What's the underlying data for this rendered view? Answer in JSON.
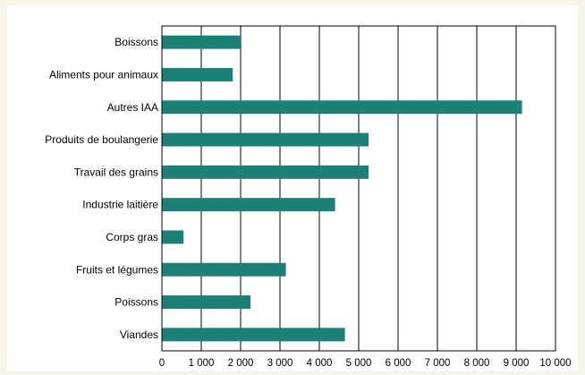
{
  "chart_data": {
    "type": "bar",
    "orientation": "horizontal",
    "categories": [
      "Boissons",
      "Aliments pour animaux",
      "Autres IAA",
      "Produits de boulangerie",
      "Travail des grains",
      "Industrie laitière",
      "Corps gras",
      "Fruits et légumes",
      "Poissons",
      "Viandes"
    ],
    "values": [
      2000,
      1800,
      9150,
      5250,
      5250,
      4400,
      550,
      3150,
      2250,
      4650
    ],
    "xlim": [
      0,
      10000
    ],
    "x_ticks": [
      0,
      1000,
      2000,
      3000,
      4000,
      5000,
      6000,
      7000,
      8000,
      9000,
      10000
    ],
    "x_tick_labels": [
      "0",
      "1 000",
      "2 000",
      "3 000",
      "4 000",
      "5 000",
      "6 000",
      "7 000",
      "8 000",
      "9 000",
      "10 000"
    ],
    "title": "",
    "xlabel": "",
    "ylabel": "",
    "grid": "vertical",
    "bar_color": "#1d8077"
  }
}
